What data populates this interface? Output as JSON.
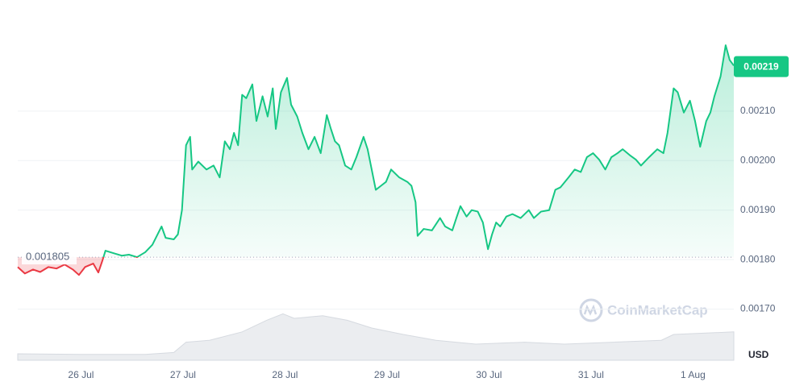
{
  "chart_data": {
    "type": "line",
    "x": [
      25.38,
      25.45,
      25.53,
      25.6,
      25.68,
      25.76,
      25.84,
      25.92,
      25.98,
      26.04,
      26.12,
      26.17,
      26.21,
      26.24,
      26.32,
      26.4,
      26.47,
      26.55,
      26.63,
      26.7,
      26.79,
      26.83,
      26.91,
      26.95,
      26.99,
      27.03,
      27.07,
      27.09,
      27.15,
      27.23,
      27.3,
      27.36,
      27.41,
      27.46,
      27.5,
      27.54,
      27.58,
      27.62,
      27.68,
      27.72,
      27.78,
      27.83,
      27.88,
      27.91,
      27.96,
      28.02,
      28.06,
      28.12,
      28.17,
      28.23,
      28.29,
      28.35,
      28.41,
      28.45,
      28.49,
      28.53,
      28.59,
      28.65,
      28.7,
      28.77,
      28.81,
      28.85,
      28.89,
      28.94,
      28.99,
      29.04,
      29.12,
      29.2,
      29.24,
      29.28,
      29.3,
      29.36,
      29.44,
      29.52,
      29.57,
      29.64,
      29.68,
      29.72,
      29.78,
      29.83,
      29.89,
      29.94,
      29.99,
      30.03,
      30.07,
      30.11,
      30.17,
      30.23,
      30.31,
      30.39,
      30.44,
      30.51,
      30.59,
      30.65,
      30.7,
      30.78,
      30.84,
      30.9,
      30.96,
      31.02,
      31.08,
      31.14,
      31.2,
      31.26,
      31.31,
      31.38,
      31.44,
      31.49,
      31.57,
      31.65,
      31.71,
      31.75,
      31.81,
      31.85,
      31.91,
      31.97,
      32.02,
      32.07,
      32.13,
      32.17,
      32.21,
      32.27,
      32.32,
      32.36,
      32.4
    ],
    "series": [
      {
        "color": "#16c784",
        "values": [
          0.001785,
          0.001772,
          0.00178,
          0.001775,
          0.001785,
          0.001782,
          0.00179,
          0.00178,
          0.001769,
          0.001785,
          0.001792,
          0.001774,
          0.001798,
          0.001818,
          0.001813,
          0.001808,
          0.00181,
          0.001805,
          0.001815,
          0.00183,
          0.001867,
          0.001844,
          0.001841,
          0.001851,
          0.0019,
          0.002031,
          0.002048,
          0.001982,
          0.001998,
          0.001982,
          0.00199,
          0.001966,
          0.002039,
          0.002023,
          0.002056,
          0.002031,
          0.002133,
          0.002126,
          0.002154,
          0.00208,
          0.00213,
          0.002089,
          0.002146,
          0.002064,
          0.002138,
          0.002167,
          0.002113,
          0.002089,
          0.002056,
          0.002023,
          0.002048,
          0.002015,
          0.002092,
          0.002064,
          0.002039,
          0.002031,
          0.00199,
          0.001982,
          0.002007,
          0.002048,
          0.002023,
          0.001982,
          0.001941,
          0.001949,
          0.001957,
          0.001982,
          0.001966,
          0.001957,
          0.001949,
          0.001916,
          0.001848,
          0.001862,
          0.001859,
          0.001884,
          0.001867,
          0.001859,
          0.001884,
          0.001908,
          0.001887,
          0.0019,
          0.001897,
          0.001875,
          0.001821,
          0.001851,
          0.001875,
          0.001867,
          0.001887,
          0.001892,
          0.001884,
          0.0019,
          0.001884,
          0.001897,
          0.0019,
          0.001941,
          0.001946,
          0.001966,
          0.001982,
          0.001977,
          0.002007,
          0.002015,
          0.002002,
          0.001982,
          0.002007,
          0.002015,
          0.002023,
          0.002011,
          0.002002,
          0.00199,
          0.002007,
          0.002023,
          0.002015,
          0.002056,
          0.002146,
          0.002138,
          0.002097,
          0.002121,
          0.00208,
          0.002028,
          0.00208,
          0.002097,
          0.00213,
          0.00217,
          0.002233,
          0.002203,
          0.002192
        ]
      }
    ],
    "down_color": "#ea3943",
    "baseline": 0.001805,
    "last_value": 0.00219,
    "y_unit": "USD",
    "watermark": "CoinMarketCap",
    "xlim": [
      25.38,
      32.4
    ],
    "ylim": [
      0.0016,
      0.0023
    ],
    "xticks": [
      {
        "value": 26,
        "label": "26 Jul"
      },
      {
        "value": 27,
        "label": "27 Jul"
      },
      {
        "value": 28,
        "label": "28 Jul"
      },
      {
        "value": 29,
        "label": "29 Jul"
      },
      {
        "value": 30,
        "label": "30 Jul"
      },
      {
        "value": 31,
        "label": "31 Jul"
      },
      {
        "value": 32,
        "label": "1 Aug"
      }
    ],
    "yticks": [
      {
        "value": 0.0017,
        "label": "0.00170"
      },
      {
        "value": 0.0018,
        "label": "0.00180"
      },
      {
        "value": 0.0019,
        "label": "0.00190"
      },
      {
        "value": 0.002,
        "label": "0.00200"
      },
      {
        "value": 0.0021,
        "label": "0.00210"
      }
    ],
    "grid": true,
    "volume": {
      "color": "#e3e6ea",
      "ylim": [
        0,
        100
      ],
      "x": [
        25.38,
        26,
        26.63,
        26.91,
        27.03,
        27.26,
        27.58,
        27.82,
        27.98,
        28.09,
        28.37,
        28.61,
        28.85,
        29.16,
        29.48,
        29.87,
        30.35,
        30.74,
        31.22,
        31.69,
        31.81,
        32.4
      ],
      "values": [
        10,
        9,
        9,
        12,
        28,
        31,
        44,
        62,
        72,
        65,
        69,
        62,
        50,
        40,
        31,
        25,
        28,
        25,
        28,
        31,
        40,
        44
      ]
    }
  }
}
